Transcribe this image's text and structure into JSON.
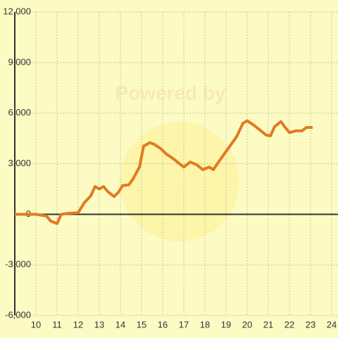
{
  "chart_data": {
    "type": "line",
    "watermark": "Powered by",
    "x": [
      9,
      9.5,
      10,
      10.5,
      10.7,
      11,
      11.2,
      11.5,
      12,
      12.3,
      12.6,
      12.8,
      13,
      13.2,
      13.4,
      13.7,
      13.9,
      14.1,
      14.4,
      14.6,
      14.9,
      15.1,
      15.4,
      15.6,
      15.9,
      16.2,
      16.5,
      16.8,
      17,
      17.3,
      17.6,
      17.9,
      18.2,
      18.4,
      18.7,
      19.1,
      19.5,
      19.8,
      20,
      20.3,
      20.6,
      20.9,
      21.1,
      21.3,
      21.6,
      21.8,
      22,
      22.3,
      22.6,
      22.8,
      23.1
    ],
    "series": [
      {
        "color": "#e07b22",
        "values": [
          0,
          0,
          0,
          -100,
          -400,
          -550,
          0,
          50,
          100,
          700,
          1100,
          1650,
          1500,
          1650,
          1350,
          1050,
          1300,
          1700,
          1750,
          2100,
          2800,
          4050,
          4250,
          4150,
          3900,
          3550,
          3300,
          3000,
          2800,
          3100,
          2950,
          2650,
          2800,
          2650,
          3200,
          3900,
          4600,
          5400,
          5550,
          5300,
          5000,
          4700,
          4650,
          5200,
          5500,
          5150,
          4850,
          4950,
          4950,
          5150,
          5150
        ]
      }
    ],
    "xlim": [
      9,
      24.3
    ],
    "xticks": [
      10,
      11,
      12,
      13,
      14,
      15,
      16,
      17,
      18,
      19,
      20,
      21,
      22,
      23,
      24
    ],
    "ylim": [
      -6000,
      12000
    ],
    "yticks": [
      {
        "value": -6000,
        "label": "-6,000"
      },
      {
        "value": -3000,
        "label": "-3,000"
      },
      0,
      {
        "value": 3000,
        "label": "3,000"
      },
      {
        "value": 6000,
        "label": "6,000"
      },
      {
        "value": 9000,
        "label": "9,000"
      },
      {
        "value": 12000,
        "label": "12,000"
      }
    ],
    "grid": true
  }
}
